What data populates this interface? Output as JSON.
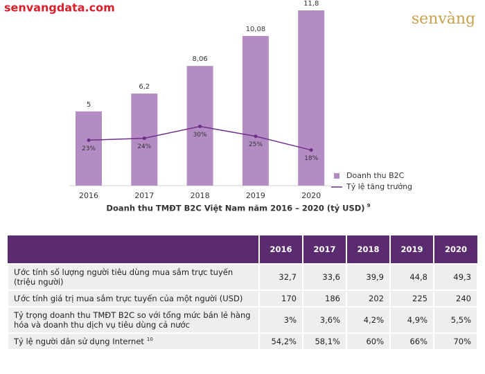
{
  "brand": {
    "site": "senvangdata.com",
    "logo": "senvàng"
  },
  "chart_data": {
    "type": "bar",
    "title": "Doanh thu TMĐT B2C Việt Nam năm 2016 – 2020 (tỷ USD)",
    "title_note": "9",
    "categories": [
      "2016",
      "2017",
      "2018",
      "2019",
      "2020"
    ],
    "ylim": [
      0,
      12.5
    ],
    "y2lim": [
      0,
      94
    ],
    "legend": "right",
    "series": [
      {
        "name": "Doanh thu B2C",
        "color": "#b48cc4",
        "values": [
          5,
          6.2,
          8.06,
          10.08,
          11.8
        ],
        "value_labels": [
          "5",
          "6,2",
          "8,06",
          "10,08",
          "11,8"
        ]
      },
      {
        "name": "Tỷ lệ tăng trưởng",
        "color": "#6e2f86",
        "type": "line",
        "axis": "y2",
        "values": [
          23,
          24,
          30,
          25,
          18
        ],
        "value_labels": [
          "23%",
          "24%",
          "30%",
          "25%",
          "18%"
        ]
      }
    ]
  },
  "table": {
    "columns": [
      "2016",
      "2017",
      "2018",
      "2019",
      "2020"
    ],
    "rows": [
      {
        "label": "Ước tính số lượng người tiêu dùng mua sắm trực tuyến (triệu người)",
        "cells": [
          "32,7",
          "33,6",
          "39,9",
          "44,8",
          "49,3"
        ]
      },
      {
        "label": "Ước tính giá trị mua sắm trực tuyến của một người (USD)",
        "cells": [
          "170",
          "186",
          "202",
          "225",
          "240"
        ]
      },
      {
        "label": "Tỷ trọng doanh thu TMĐT B2C so với tổng mức bán lẻ hàng hóa và doanh thu dịch vụ tiêu dùng cả nước",
        "cells": [
          "3%",
          "3,6%",
          "4,2%",
          "4,9%",
          "5,5%"
        ]
      },
      {
        "label": "Tỷ lệ người dân sử dụng Internet",
        "note": "10",
        "cells": [
          "54,2%",
          "58,1%",
          "60%",
          "66%",
          "70%"
        ]
      }
    ]
  }
}
